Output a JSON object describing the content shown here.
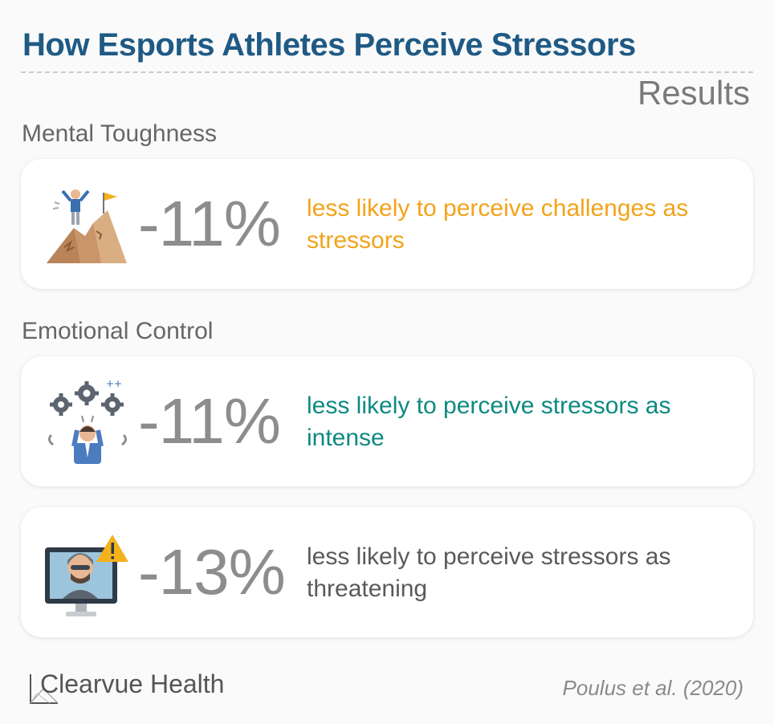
{
  "header": {
    "title": "How Esports Athletes Perceive Stressors",
    "subtitle": "Results"
  },
  "sections": [
    {
      "label": "Mental Toughness"
    },
    {
      "label": "Emotional Control"
    }
  ],
  "cards": [
    {
      "percent": "-11%",
      "text": "less likely to perceive challenges as stressors",
      "color": "#f3a31b",
      "icon": "mountain-summit-icon"
    },
    {
      "percent": "-11%",
      "text": "less likely to perceive stressors as intense",
      "color": "#0e8a80",
      "icon": "stressed-gears-icon"
    },
    {
      "percent": "-13%",
      "text": "less likely to perceive stressors as threatening",
      "color": "#5a5a5a",
      "icon": "gamer-warning-icon"
    }
  ],
  "footer": {
    "brand": "Clearvue Health",
    "citation": "Poulus et al. (2020)"
  }
}
